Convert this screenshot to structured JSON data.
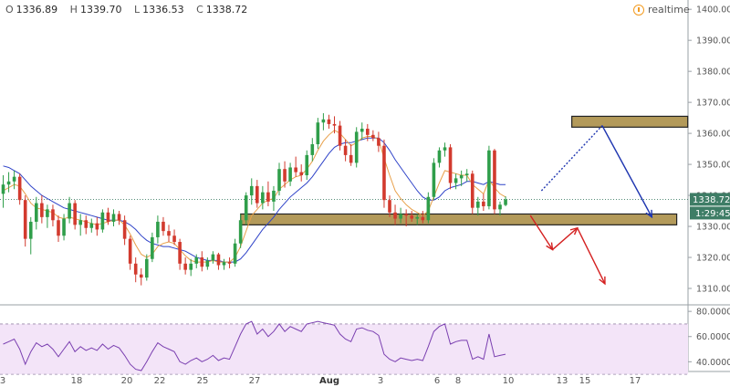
{
  "header": {
    "open_label": "O",
    "open": "1336.89",
    "high_label": "H",
    "high": "1339.70",
    "low_label": "L",
    "low": "1336.53",
    "close_label": "C",
    "close": "1338.72",
    "realtime_label": "realtime"
  },
  "price_tag": {
    "last": "1338.72",
    "countdown": "1:29:45"
  },
  "colors": {
    "up": "#2f9e4a",
    "down": "#d23a2e",
    "ma_fast": "#e8a04a",
    "ma_slow": "#2f43c8",
    "zone_fill": "#b39a5a",
    "zone_border": "#222222",
    "rsi_line": "#7a3fb0",
    "rsi_band": "#f3e4f8",
    "price_tag": "#3e7d66",
    "arrow_blue": "#1f36b0",
    "arrow_red": "#d41f1f"
  },
  "chart_data": {
    "type": "candlestick",
    "price_axis": {
      "min": 1305,
      "max": 1403,
      "ticks": [
        "1400.00",
        "1390.00",
        "1380.00",
        "1370.00",
        "1360.00",
        "1350.00",
        "1340.00",
        "1330.00",
        "1320.00",
        "1310.00"
      ]
    },
    "rsi_axis": {
      "min": 33,
      "max": 83,
      "ticks": [
        "80.0000",
        "60.0000",
        "40.0000"
      ],
      "band": [
        70,
        30
      ]
    },
    "x_labels": [
      "3",
      "18",
      "20",
      "22",
      "25",
      "27",
      "Aug",
      "3",
      "6",
      "8",
      "10",
      "13",
      "15",
      "17"
    ],
    "candles": [
      [
        1340.5,
        1346.5,
        1336.0,
        1343.5
      ],
      [
        1343.5,
        1347.5,
        1341.0,
        1344.5
      ],
      [
        1344.5,
        1348.0,
        1342.0,
        1346.0
      ],
      [
        1346.0,
        1347.0,
        1337.0,
        1338.5
      ],
      [
        1338.5,
        1340.0,
        1323.5,
        1326.0
      ],
      [
        1326.0,
        1333.0,
        1321.0,
        1331.5
      ],
      [
        1331.5,
        1339.5,
        1329.0,
        1337.5
      ],
      [
        1337.5,
        1340.0,
        1331.0,
        1333.0
      ],
      [
        1333.0,
        1337.0,
        1329.5,
        1335.5
      ],
      [
        1335.5,
        1337.0,
        1330.0,
        1332.0
      ],
      [
        1332.0,
        1333.5,
        1325.0,
        1327.0
      ],
      [
        1327.0,
        1334.0,
        1325.5,
        1332.5
      ],
      [
        1332.5,
        1339.5,
        1331.0,
        1337.5
      ],
      [
        1337.5,
        1338.5,
        1329.0,
        1330.5
      ],
      [
        1330.5,
        1334.0,
        1327.0,
        1332.0
      ],
      [
        1332.0,
        1333.5,
        1327.5,
        1329.5
      ],
      [
        1329.5,
        1332.5,
        1328.0,
        1331.0
      ],
      [
        1331.0,
        1333.0,
        1327.0,
        1329.0
      ],
      [
        1329.0,
        1335.5,
        1328.0,
        1334.5
      ],
      [
        1334.5,
        1336.0,
        1330.5,
        1331.5
      ],
      [
        1331.5,
        1335.5,
        1330.0,
        1334.0
      ],
      [
        1334.0,
        1335.0,
        1330.5,
        1332.0
      ],
      [
        1332.0,
        1333.5,
        1324.0,
        1326.0
      ],
      [
        1326.0,
        1327.0,
        1316.0,
        1318.0
      ],
      [
        1318.0,
        1320.0,
        1312.0,
        1314.5
      ],
      [
        1314.5,
        1316.5,
        1311.0,
        1313.5
      ],
      [
        1313.5,
        1321.0,
        1312.5,
        1319.5
      ],
      [
        1319.5,
        1328.0,
        1318.5,
        1326.5
      ],
      [
        1326.5,
        1333.5,
        1324.5,
        1331.5
      ],
      [
        1331.5,
        1333.0,
        1327.0,
        1328.5
      ],
      [
        1328.5,
        1330.5,
        1325.0,
        1327.0
      ],
      [
        1327.0,
        1329.0,
        1324.0,
        1325.0
      ],
      [
        1325.0,
        1326.0,
        1316.0,
        1318.0
      ],
      [
        1318.0,
        1320.0,
        1314.5,
        1316.0
      ],
      [
        1316.0,
        1319.5,
        1314.0,
        1318.0
      ],
      [
        1318.0,
        1321.0,
        1316.5,
        1320.0
      ],
      [
        1320.0,
        1322.0,
        1315.5,
        1317.0
      ],
      [
        1317.0,
        1320.0,
        1316.0,
        1319.0
      ],
      [
        1319.0,
        1322.0,
        1318.0,
        1321.0
      ],
      [
        1321.0,
        1321.5,
        1316.0,
        1317.5
      ],
      [
        1317.5,
        1319.5,
        1316.0,
        1318.5
      ],
      [
        1318.5,
        1320.0,
        1316.5,
        1318.0
      ],
      [
        1318.0,
        1326.0,
        1317.0,
        1324.5
      ],
      [
        1324.5,
        1334.0,
        1323.0,
        1332.0
      ],
      [
        1332.0,
        1341.0,
        1330.5,
        1340.0
      ],
      [
        1340.0,
        1345.5,
        1337.0,
        1343.0
      ],
      [
        1343.0,
        1345.0,
        1336.0,
        1337.5
      ],
      [
        1337.5,
        1343.0,
        1335.5,
        1341.0
      ],
      [
        1341.0,
        1344.5,
        1336.5,
        1338.0
      ],
      [
        1338.0,
        1343.0,
        1335.0,
        1341.5
      ],
      [
        1341.5,
        1350.5,
        1340.0,
        1348.5
      ],
      [
        1348.5,
        1351.0,
        1342.5,
        1344.5
      ],
      [
        1344.5,
        1350.5,
        1343.0,
        1349.0
      ],
      [
        1349.0,
        1352.5,
        1346.0,
        1347.5
      ],
      [
        1347.5,
        1350.0,
        1344.5,
        1346.5
      ],
      [
        1346.5,
        1354.5,
        1345.0,
        1353.0
      ],
      [
        1353.0,
        1358.5,
        1351.0,
        1356.5
      ],
      [
        1356.5,
        1365.0,
        1355.0,
        1363.5
      ],
      [
        1363.5,
        1366.5,
        1361.0,
        1364.5
      ],
      [
        1364.5,
        1366.0,
        1361.5,
        1363.0
      ],
      [
        1363.0,
        1365.5,
        1360.0,
        1362.5
      ],
      [
        1362.5,
        1364.0,
        1354.5,
        1356.0
      ],
      [
        1356.0,
        1358.0,
        1351.0,
        1353.0
      ],
      [
        1353.0,
        1356.5,
        1349.5,
        1350.5
      ],
      [
        1350.5,
        1362.0,
        1349.0,
        1360.5
      ],
      [
        1360.5,
        1363.5,
        1358.0,
        1361.5
      ],
      [
        1361.5,
        1363.0,
        1357.5,
        1359.5
      ],
      [
        1359.5,
        1361.0,
        1357.5,
        1358.5
      ],
      [
        1358.5,
        1360.5,
        1354.0,
        1356.0
      ],
      [
        1356.0,
        1358.0,
        1336.0,
        1338.5
      ],
      [
        1338.5,
        1340.0,
        1333.0,
        1334.5
      ],
      [
        1334.5,
        1337.0,
        1330.5,
        1332.5
      ],
      [
        1332.5,
        1336.0,
        1331.0,
        1334.0
      ],
      [
        1334.0,
        1335.5,
        1330.0,
        1333.5
      ],
      [
        1333.5,
        1335.0,
        1331.5,
        1332.5
      ],
      [
        1332.5,
        1334.0,
        1330.5,
        1333.0
      ],
      [
        1333.0,
        1335.0,
        1331.0,
        1332.0
      ],
      [
        1332.0,
        1341.0,
        1331.0,
        1339.5
      ],
      [
        1339.5,
        1352.0,
        1338.5,
        1350.5
      ],
      [
        1350.5,
        1355.5,
        1349.0,
        1354.5
      ],
      [
        1354.5,
        1357.0,
        1352.5,
        1355.5
      ],
      [
        1355.5,
        1356.5,
        1342.0,
        1344.0
      ],
      [
        1344.0,
        1347.0,
        1342.0,
        1345.5
      ],
      [
        1345.5,
        1348.0,
        1343.0,
        1346.5
      ],
      [
        1346.5,
        1348.5,
        1344.5,
        1347.0
      ],
      [
        1347.0,
        1348.0,
        1334.0,
        1336.0
      ],
      [
        1336.0,
        1339.5,
        1333.5,
        1338.0
      ],
      [
        1338.0,
        1340.5,
        1335.0,
        1336.5
      ],
      [
        1336.5,
        1356.0,
        1335.5,
        1354.5
      ],
      [
        1354.5,
        1355.0,
        1334.0,
        1335.5
      ],
      [
        1335.5,
        1338.0,
        1333.5,
        1337.0
      ],
      [
        1336.9,
        1339.7,
        1336.5,
        1338.7
      ]
    ],
    "ma_fast": [
      1341.5,
      1342.5,
      1343.5,
      1343.0,
      1340.5,
      1337.5,
      1336.0,
      1335.5,
      1335.0,
      1334.5,
      1333.0,
      1332.5,
      1333.0,
      1332.5,
      1332.0,
      1331.5,
      1331.0,
      1330.5,
      1331.0,
      1331.5,
      1332.0,
      1332.0,
      1330.5,
      1327.5,
      1324.0,
      1321.0,
      1320.0,
      1321.0,
      1323.5,
      1324.5,
      1325.0,
      1324.5,
      1322.5,
      1320.5,
      1319.0,
      1318.5,
      1318.5,
      1318.5,
      1319.0,
      1318.5,
      1318.5,
      1318.5,
      1320.0,
      1323.5,
      1328.5,
      1333.5,
      1335.5,
      1337.5,
      1338.5,
      1339.0,
      1342.0,
      1343.5,
      1345.0,
      1346.0,
      1346.5,
      1348.5,
      1351.0,
      1354.5,
      1357.5,
      1359.5,
      1361.0,
      1360.0,
      1358.0,
      1356.0,
      1357.0,
      1358.5,
      1359.0,
      1359.0,
      1358.0,
      1352.0,
      1346.5,
      1341.5,
      1339.0,
      1337.0,
      1335.5,
      1334.5,
      1333.5,
      1335.0,
      1339.5,
      1344.0,
      1348.0,
      1347.5,
      1347.0,
      1346.5,
      1346.5,
      1343.5,
      1342.0,
      1340.5,
      1345.0,
      1342.5,
      1340.5,
      1339.5
    ],
    "ma_slow": [
      1349.5,
      1349.0,
      1348.0,
      1347.0,
      1345.0,
      1343.0,
      1341.5,
      1340.0,
      1339.0,
      1338.0,
      1337.0,
      1336.0,
      1335.5,
      1335.0,
      1334.5,
      1334.0,
      1333.5,
      1333.0,
      1332.5,
      1332.0,
      1332.0,
      1332.0,
      1331.5,
      1330.5,
      1329.0,
      1327.0,
      1325.5,
      1324.5,
      1324.0,
      1323.5,
      1323.5,
      1323.0,
      1322.5,
      1322.0,
      1321.0,
      1320.0,
      1319.5,
      1319.0,
      1319.0,
      1319.0,
      1318.5,
      1318.5,
      1318.5,
      1319.5,
      1321.5,
      1324.0,
      1326.5,
      1329.0,
      1331.0,
      1333.0,
      1335.5,
      1337.5,
      1339.5,
      1341.0,
      1342.5,
      1344.0,
      1346.0,
      1348.5,
      1351.0,
      1353.5,
      1355.5,
      1356.5,
      1357.0,
      1357.0,
      1357.5,
      1358.0,
      1358.5,
      1358.5,
      1358.5,
      1357.0,
      1354.5,
      1351.5,
      1349.0,
      1346.5,
      1344.0,
      1341.5,
      1339.5,
      1338.5,
      1338.5,
      1339.5,
      1341.5,
      1342.5,
      1343.0,
      1343.5,
      1344.5,
      1344.5,
      1344.0,
      1343.5,
      1344.5,
      1344.0,
      1343.5,
      1343.5
    ],
    "rsi": [
      54,
      56,
      58,
      50,
      38,
      48,
      55,
      52,
      54,
      50,
      44,
      50,
      56,
      48,
      52,
      49,
      51,
      49,
      54,
      50,
      53,
      51,
      45,
      38,
      34,
      33,
      40,
      48,
      55,
      52,
      50,
      48,
      40,
      38,
      41,
      43,
      40,
      42,
      45,
      41,
      43,
      42,
      52,
      62,
      70,
      72,
      62,
      66,
      60,
      64,
      70,
      64,
      68,
      66,
      64,
      70,
      71,
      72,
      71,
      70,
      69,
      62,
      58,
      56,
      66,
      67,
      65,
      64,
      61,
      46,
      42,
      40,
      43,
      42,
      41,
      42,
      41,
      52,
      64,
      68,
      70,
      54,
      56,
      57,
      57,
      42,
      44,
      42,
      62,
      44,
      45,
      46
    ],
    "zones": [
      {
        "price_low": 1330.5,
        "price_high": 1334.0,
        "from_candle": 43,
        "to_candle": 122
      },
      {
        "price_low": 1362.0,
        "price_high": 1365.5,
        "from_candle": 103,
        "to_candle": 124
      }
    ],
    "projections": {
      "blue_dotted": [
        [
          97.5,
          1341.5
        ],
        [
          108.5,
          1362.5
        ]
      ],
      "blue_solid": [
        [
          108.5,
          1362.5
        ],
        [
          117.5,
          1333.0
        ]
      ],
      "red": [
        [
          95.5,
          1333.5
        ],
        [
          99.5,
          1322.5
        ],
        [
          104.0,
          1329.5
        ],
        [
          109.0,
          1311.5
        ]
      ]
    }
  }
}
